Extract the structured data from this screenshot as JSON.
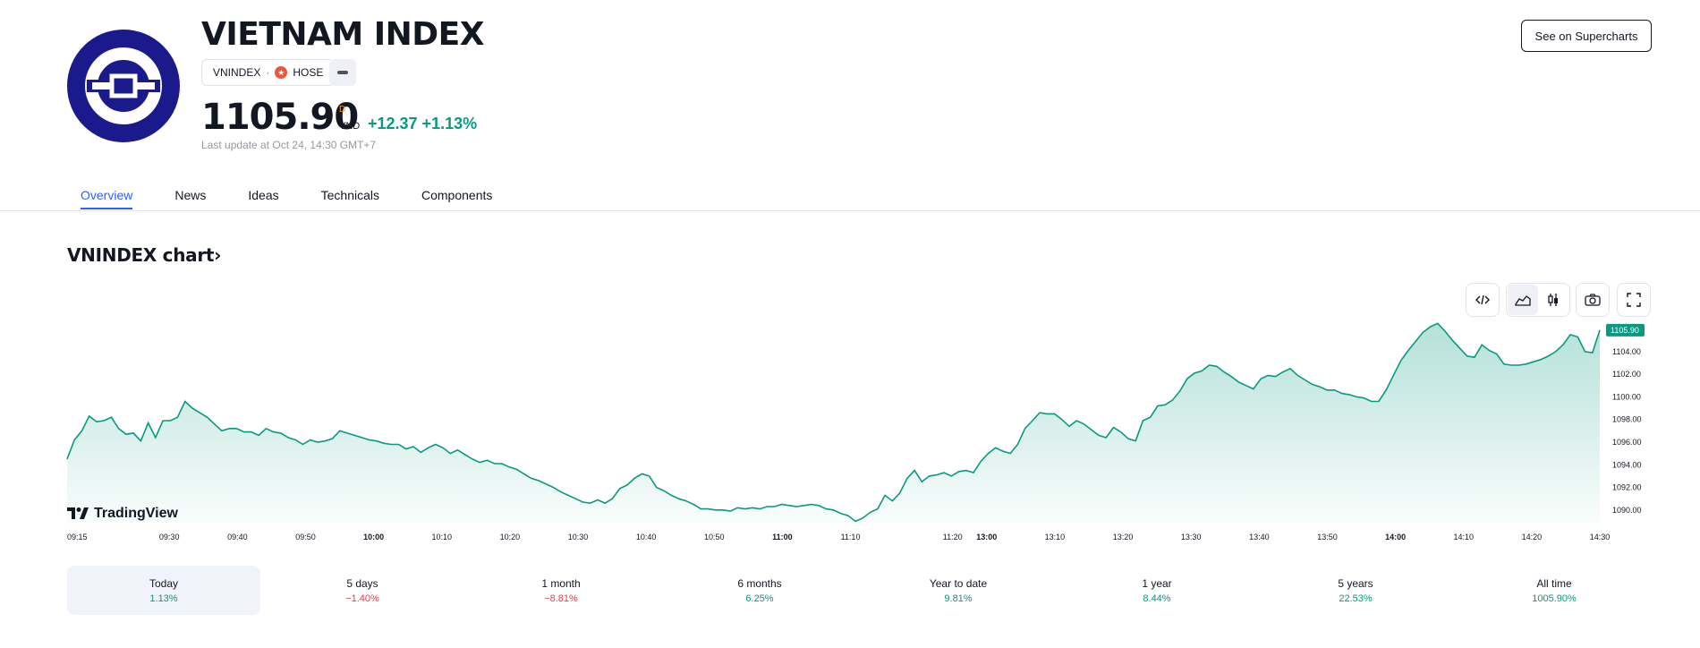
{
  "header": {
    "title": "VIETNAM INDEX",
    "symbol": "VNINDEX",
    "separator": "·",
    "exchange": "HOSE",
    "price": "1105.90",
    "price_flag": "D",
    "currency": "VND",
    "change": "+12.37 +1.13%",
    "last_update": "Last update at Oct 24, 14:30 GMT+7",
    "supercharts_button": "See on Supercharts"
  },
  "tabs": [
    {
      "label": "Overview",
      "active": true
    },
    {
      "label": "News",
      "active": false
    },
    {
      "label": "Ideas",
      "active": false
    },
    {
      "label": "Technicals",
      "active": false
    },
    {
      "label": "Components",
      "active": false
    }
  ],
  "chart_heading": "VNINDEX chart›",
  "toolbar": {
    "icons": [
      "embed-code-icon",
      "area-chart-icon",
      "candles-icon",
      "camera-icon",
      "fullscreen-icon"
    ]
  },
  "watermark": "TradingView",
  "colors": {
    "accent": "#2962ff",
    "up": "#089981",
    "down": "#f23645",
    "logo_bg": "#1a1a8c"
  },
  "chart_data": {
    "type": "area",
    "title": "",
    "xlabel": "",
    "ylabel": "",
    "ylim": [
      1088.8,
      1106.6
    ],
    "current_value_label": "1105.90",
    "x_ticks": [
      "09:15",
      "09:30",
      "09:40",
      "09:50",
      "10:00",
      "10:10",
      "10:20",
      "10:30",
      "10:40",
      "10:50",
      "11:00",
      "11:10",
      "11:20",
      "13:00",
      "13:10",
      "13:20",
      "13:30",
      "13:40",
      "13:50",
      "14:00",
      "14:10",
      "14:20",
      "14:30"
    ],
    "bold_ticks": [
      "10:00",
      "11:00",
      "13:00",
      "14:00"
    ],
    "y_ticks": [
      "1090.00",
      "1092.00",
      "1094.00",
      "1096.00",
      "1098.00",
      "1100.00",
      "1102.00",
      "1104.00"
    ],
    "series": [
      {
        "values": [
          1094.5,
          1096.2,
          1097.0,
          1098.3,
          1097.8,
          1097.9,
          1098.2,
          1097.2,
          1096.7,
          1096.8,
          1096.1,
          1097.7,
          1096.4,
          1097.9,
          1097.9,
          1098.2,
          1099.6,
          1099.0,
          1098.6,
          1098.2,
          1097.6,
          1097.0,
          1097.2,
          1097.2,
          1096.9,
          1096.9,
          1096.6,
          1097.2,
          1096.9,
          1096.8,
          1096.4,
          1096.2,
          1095.8,
          1096.2,
          1096.0,
          1096.1,
          1096.3,
          1097.0,
          1096.8,
          1096.6,
          1096.4,
          1096.2,
          1096.1,
          1095.9,
          1095.8,
          1095.8,
          1095.4,
          1095.6,
          1095.1,
          1095.5,
          1095.8,
          1095.5,
          1095.0,
          1095.3,
          1094.9,
          1094.5,
          1094.2,
          1094.4,
          1094.1,
          1094.1,
          1093.8,
          1093.6,
          1093.2,
          1092.8,
          1092.6,
          1092.3,
          1092.0,
          1091.6,
          1091.3,
          1091.0,
          1090.7,
          1090.6,
          1090.9,
          1090.6,
          1091.0,
          1091.9,
          1092.2,
          1092.8,
          1093.2,
          1093.0,
          1092.0,
          1091.7,
          1091.3,
          1091.0,
          1090.8,
          1090.5,
          1090.1,
          1090.1,
          1090.0,
          1090.0,
          1089.9,
          1090.2,
          1090.1,
          1090.2,
          1090.1,
          1090.3,
          1090.3,
          1090.5,
          1090.4,
          1090.3,
          1090.4,
          1090.5,
          1090.4,
          1090.1,
          1090.0,
          1089.7,
          1089.5,
          1089.0,
          1089.3,
          1089.8,
          1090.1,
          1091.3,
          1090.8,
          1091.5,
          1092.8,
          1093.5,
          1092.5,
          1093.0,
          1093.1,
          1093.3,
          1093.0,
          1093.4,
          1093.5,
          1093.3,
          1094.3,
          1095.0,
          1095.5,
          1095.2,
          1095.0,
          1095.8,
          1097.2,
          1097.9,
          1098.6,
          1098.5,
          1098.5,
          1098.0,
          1097.4,
          1097.9,
          1097.6,
          1097.1,
          1096.6,
          1096.4,
          1097.3,
          1096.9,
          1096.3,
          1096.1,
          1097.9,
          1098.2,
          1099.2,
          1099.3,
          1099.7,
          1100.5,
          1101.6,
          1102.1,
          1102.3,
          1102.8,
          1102.7,
          1102.2,
          1101.8,
          1101.3,
          1101.0,
          1100.7,
          1101.6,
          1101.9,
          1101.8,
          1102.2,
          1102.5,
          1101.9,
          1101.5,
          1101.1,
          1100.9,
          1100.6,
          1100.6,
          1100.3,
          1100.2,
          1100.0,
          1099.9,
          1099.6,
          1099.6,
          1100.6,
          1101.9,
          1103.2,
          1104.1,
          1104.9,
          1105.7,
          1106.2,
          1106.5,
          1105.8,
          1105.0,
          1104.3,
          1103.6,
          1103.5,
          1104.6,
          1104.1,
          1103.8,
          1102.9,
          1102.8,
          1102.8,
          1102.9,
          1103.1,
          1103.3,
          1103.6,
          1104.0,
          1104.6,
          1105.5,
          1105.3,
          1104.0,
          1103.9,
          1105.9
        ]
      }
    ]
  },
  "periods": [
    {
      "label": "Today",
      "value": "1.13%",
      "direction": "up",
      "active": true
    },
    {
      "label": "5 days",
      "value": "−1.40%",
      "direction": "down",
      "active": false
    },
    {
      "label": "1 month",
      "value": "−8.81%",
      "direction": "down",
      "active": false
    },
    {
      "label": "6 months",
      "value": "6.25%",
      "direction": "up",
      "active": false
    },
    {
      "label": "Year to date",
      "value": "9.81%",
      "direction": "up",
      "active": false
    },
    {
      "label": "1 year",
      "value": "8.44%",
      "direction": "up",
      "active": false
    },
    {
      "label": "5 years",
      "value": "22.53%",
      "direction": "up",
      "active": false
    },
    {
      "label": "All time",
      "value": "1005.90%",
      "direction": "up",
      "active": false
    }
  ]
}
